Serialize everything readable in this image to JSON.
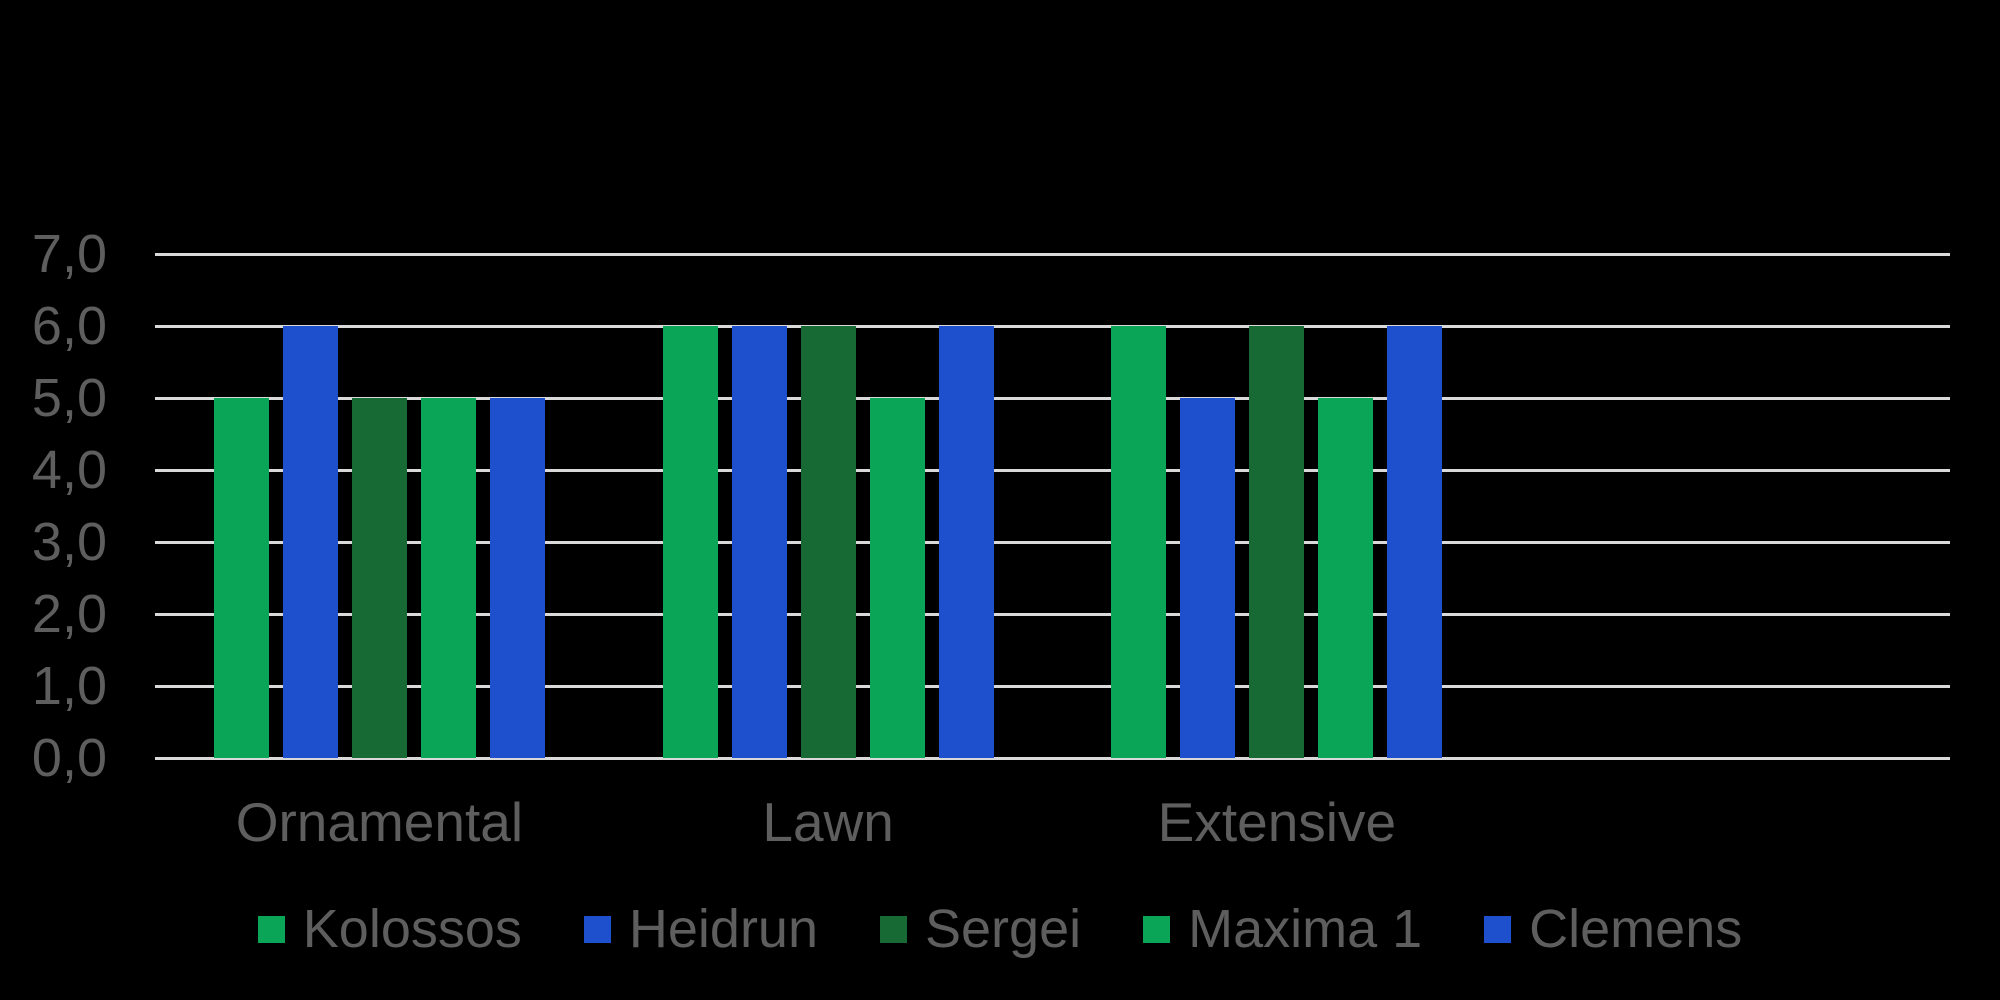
{
  "style": {
    "background": "#000000",
    "gridline_color": "#D9D9D9",
    "text_color": "#5E5E5E"
  },
  "chart_data": {
    "type": "bar",
    "title": "",
    "categories": [
      "Ornamental",
      "Lawn",
      "Extensive"
    ],
    "series": [
      {
        "name": "Kolossos",
        "color": "#0BA558",
        "values": [
          5,
          6,
          6
        ]
      },
      {
        "name": "Heidrun",
        "color": "#1E4FCD",
        "values": [
          6,
          6,
          5
        ]
      },
      {
        "name": "Sergei",
        "color": "#176A33",
        "values": [
          5,
          6,
          6
        ]
      },
      {
        "name": "Maxima 1",
        "color": "#0BA558",
        "values": [
          5,
          5,
          5
        ]
      },
      {
        "name": "Clemens",
        "color": "#1E4FCD",
        "values": [
          5,
          6,
          6
        ]
      }
    ],
    "ylim": [
      0,
      7
    ],
    "ytick_step": 1,
    "ytick_labels": [
      "0,0",
      "1,0",
      "2,0",
      "3,0",
      "4,0",
      "5,0",
      "6,0",
      "7,0"
    ],
    "grid": true,
    "legend_position": "bottom",
    "legend_entries": [
      "Kolossos",
      "Heidrun",
      "Sergei",
      "Maxima 1",
      "Clemens"
    ]
  }
}
